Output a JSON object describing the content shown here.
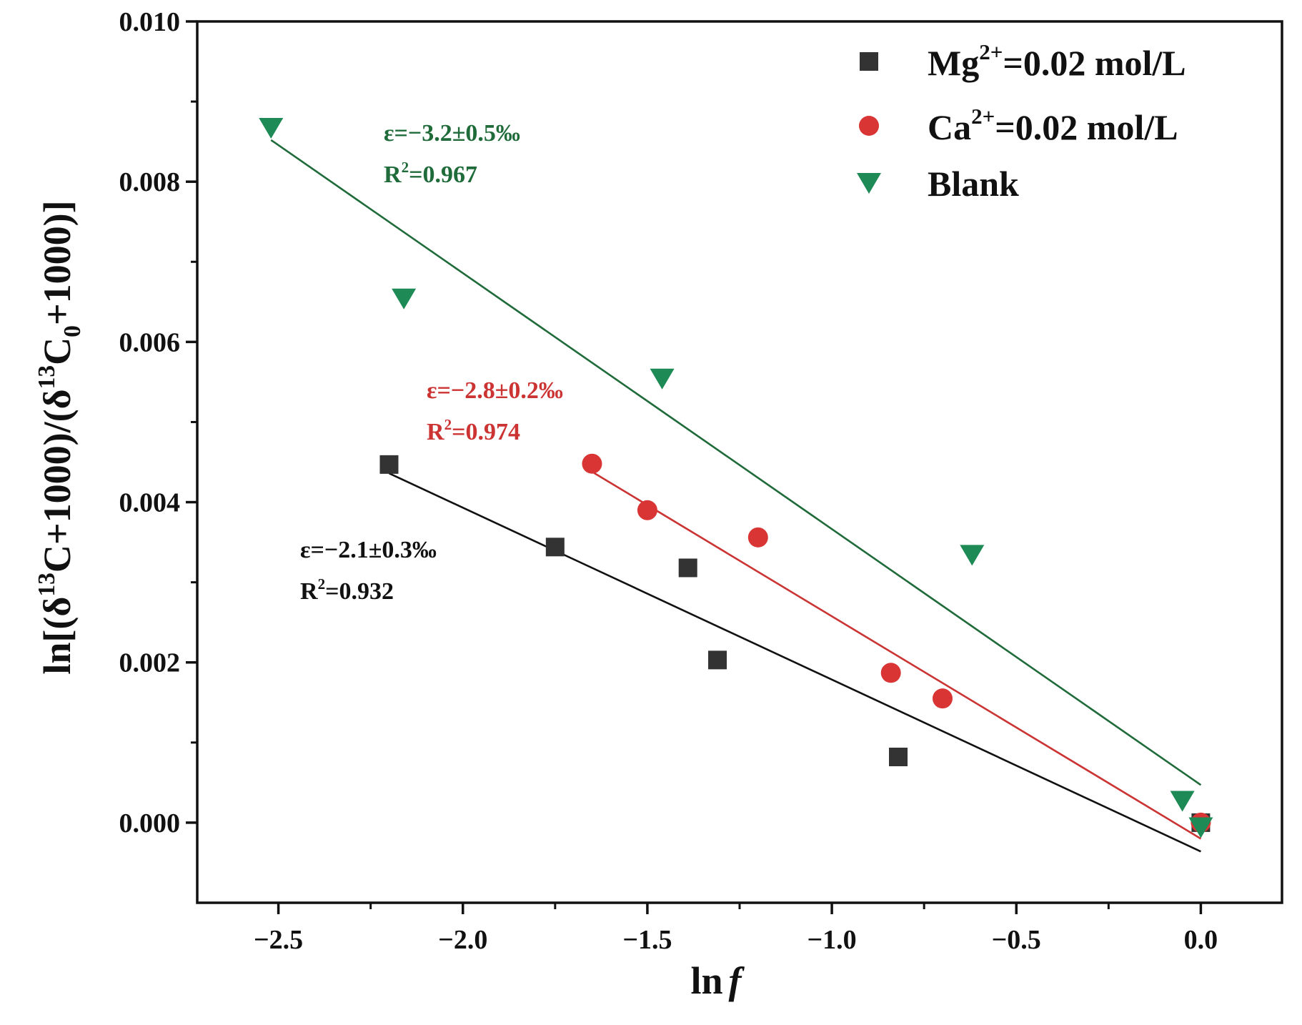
{
  "chart_data": {
    "type": "scatter",
    "xlabel": "ln",
    "xlabel_italic": "f",
    "ylabel": {
      "prefix": "ln[(δ",
      "sup1": "13",
      "mid1": "C+1000)/(δ",
      "sup2": "13",
      "mid2": "C",
      "sub2": "0",
      "suffix": "+1000)]"
    },
    "xlim": [
      -2.72,
      0.22
    ],
    "ylim": [
      -0.001,
      0.01
    ],
    "x_ticks": [
      -2.5,
      -2.0,
      -1.5,
      -1.0,
      -0.5,
      0.0
    ],
    "x_tick_labels": [
      "−2.5",
      "−2.0",
      "−1.5",
      "−1.0",
      "−0.5",
      "0.0"
    ],
    "y_ticks": [
      0.0,
      0.002,
      0.004,
      0.006,
      0.008,
      0.01
    ],
    "y_tick_labels": [
      "0.000",
      "0.002",
      "0.004",
      "0.006",
      "0.008",
      "0.010"
    ],
    "legend_position": "top-right",
    "series": [
      {
        "key": "mg",
        "name_main": "Mg",
        "name_sup": "2+",
        "name_rest": "=0.02 mol/L",
        "marker": "square",
        "color": "#333333",
        "line_color": "#111111",
        "x": [
          -2.2,
          -1.75,
          -1.39,
          -1.31,
          -0.82,
          0.0
        ],
        "y": [
          0.00447,
          0.00344,
          0.00318,
          0.00203,
          0.00082,
          0.0
        ],
        "fit": {
          "x": [
            -2.2,
            0.0
          ],
          "y": [
            0.00436,
            -0.00036
          ]
        },
        "annotation": {
          "epsilon": "ε=−2.1±0.3‰",
          "r2_label": "R",
          "r2_sup": "2",
          "r2_value": "=0.932"
        }
      },
      {
        "key": "ca",
        "name_main": "Ca",
        "name_sup": "2+",
        "name_rest": "=0.02 mol/L",
        "marker": "circle",
        "color": "#d93535",
        "line_color": "#cc3333",
        "x": [
          -1.65,
          -1.5,
          -1.2,
          -0.84,
          -0.7,
          0.0
        ],
        "y": [
          0.00448,
          0.0039,
          0.00356,
          0.00187,
          0.00155,
          0.0
        ],
        "fit": {
          "x": [
            -1.65,
            0.0
          ],
          "y": [
            0.00438,
            -0.0002
          ]
        },
        "annotation": {
          "epsilon": "ε=−2.8±0.2‰",
          "r2_label": "R",
          "r2_sup": "2",
          "r2_value": "=0.974"
        }
      },
      {
        "key": "blank",
        "name_main": "Blank",
        "name_sup": "",
        "name_rest": "",
        "marker": "triangle-down",
        "color": "#1e8a55",
        "line_color": "#1f6b3a",
        "x": [
          -2.52,
          -2.16,
          -1.46,
          -0.62,
          -0.05,
          0.0
        ],
        "y": [
          0.00868,
          0.00655,
          0.00555,
          0.00335,
          0.00028,
          -5e-05
        ],
        "fit": {
          "x": [
            -2.52,
            0.0
          ],
          "y": [
            0.00852,
            0.00047
          ]
        },
        "annotation": {
          "epsilon": "ε=−3.2±0.5‰",
          "r2_label": "R",
          "r2_sup": "2",
          "r2_value": "=0.967"
        }
      }
    ]
  }
}
